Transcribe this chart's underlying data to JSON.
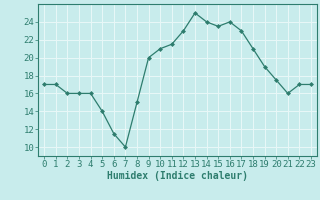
{
  "x": [
    0,
    1,
    2,
    3,
    4,
    5,
    6,
    7,
    8,
    9,
    10,
    11,
    12,
    13,
    14,
    15,
    16,
    17,
    18,
    19,
    20,
    21,
    22,
    23
  ],
  "y": [
    17,
    17,
    16,
    16,
    16,
    14,
    11.5,
    10,
    15,
    20,
    21,
    21.5,
    23,
    25,
    24,
    23.5,
    24,
    23,
    21,
    19,
    17.5,
    16,
    17,
    17
  ],
  "line_color": "#2e7d6e",
  "marker": "D",
  "marker_size": 2.0,
  "bg_color": "#c8ecec",
  "grid_color": "#e8f8f8",
  "xlabel": "Humidex (Indice chaleur)",
  "xlim": [
    -0.5,
    23.5
  ],
  "ylim": [
    9,
    26
  ],
  "yticks": [
    10,
    12,
    14,
    16,
    18,
    20,
    22,
    24
  ],
  "xticks": [
    0,
    1,
    2,
    3,
    4,
    5,
    6,
    7,
    8,
    9,
    10,
    11,
    12,
    13,
    14,
    15,
    16,
    17,
    18,
    19,
    20,
    21,
    22,
    23
  ],
  "axis_label_fontsize": 7,
  "tick_fontsize": 6.5
}
